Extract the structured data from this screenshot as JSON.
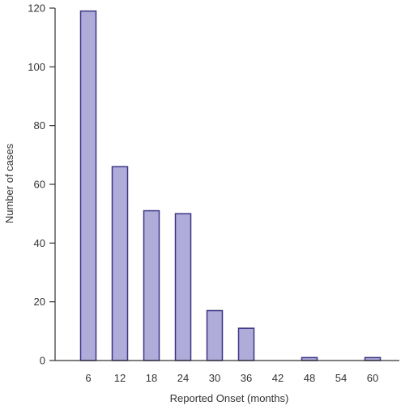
{
  "chart_data": {
    "type": "bar",
    "title": "",
    "xlabel": "Reported Onset (months)",
    "ylabel": "Number of cases",
    "categories": [
      "6",
      "12",
      "18",
      "24",
      "30",
      "36",
      "42",
      "48",
      "54",
      "60"
    ],
    "values": [
      119,
      66,
      51,
      50,
      17,
      11,
      0,
      1,
      0,
      1
    ],
    "ylim": [
      0,
      120
    ],
    "yticks": [
      0,
      20,
      40,
      60,
      80,
      100,
      120
    ],
    "grid": false,
    "legend": "none",
    "colors": {
      "bar_fill": "#b0acd9",
      "bar_stroke": "#3b3585",
      "axis": "#333333",
      "text": "#333333"
    }
  }
}
